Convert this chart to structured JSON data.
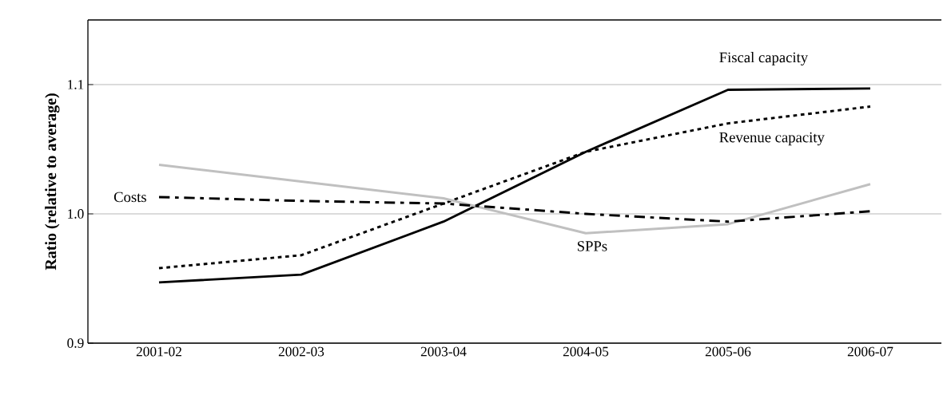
{
  "chart_data": {
    "type": "line",
    "ylabel": "Ratio (relative to average)",
    "categories": [
      "2001-02",
      "2002-03",
      "2003-04",
      "2004-05",
      "2005-06",
      "2006-07"
    ],
    "series": [
      {
        "name": "Fiscal capacity",
        "color": "#000000",
        "line_style": "solid",
        "values": [
          0.947,
          0.953,
          0.994,
          1.048,
          1.096,
          1.097
        ]
      },
      {
        "name": "Revenue capacity",
        "color": "#000000",
        "line_style": "dotted",
        "values": [
          0.958,
          0.968,
          1.008,
          1.048,
          1.07,
          1.083
        ]
      },
      {
        "name": "SPPs",
        "color": "#c0c0c0",
        "line_style": "solid",
        "values": [
          1.038,
          1.025,
          1.012,
          0.985,
          0.992,
          1.023
        ]
      },
      {
        "name": "Costs",
        "color": "#000000",
        "line_style": "dashdot",
        "values": [
          1.013,
          1.01,
          1.008,
          1.0,
          0.994,
          1.002
        ]
      }
    ],
    "ylim": [
      0.9,
      1.15
    ],
    "yticks": [
      {
        "value": 0.9,
        "label": "0.9"
      },
      {
        "value": 1.0,
        "label": "1.0"
      },
      {
        "value": 1.1,
        "label": "1.1"
      }
    ],
    "grid": "y",
    "legend": false
  }
}
